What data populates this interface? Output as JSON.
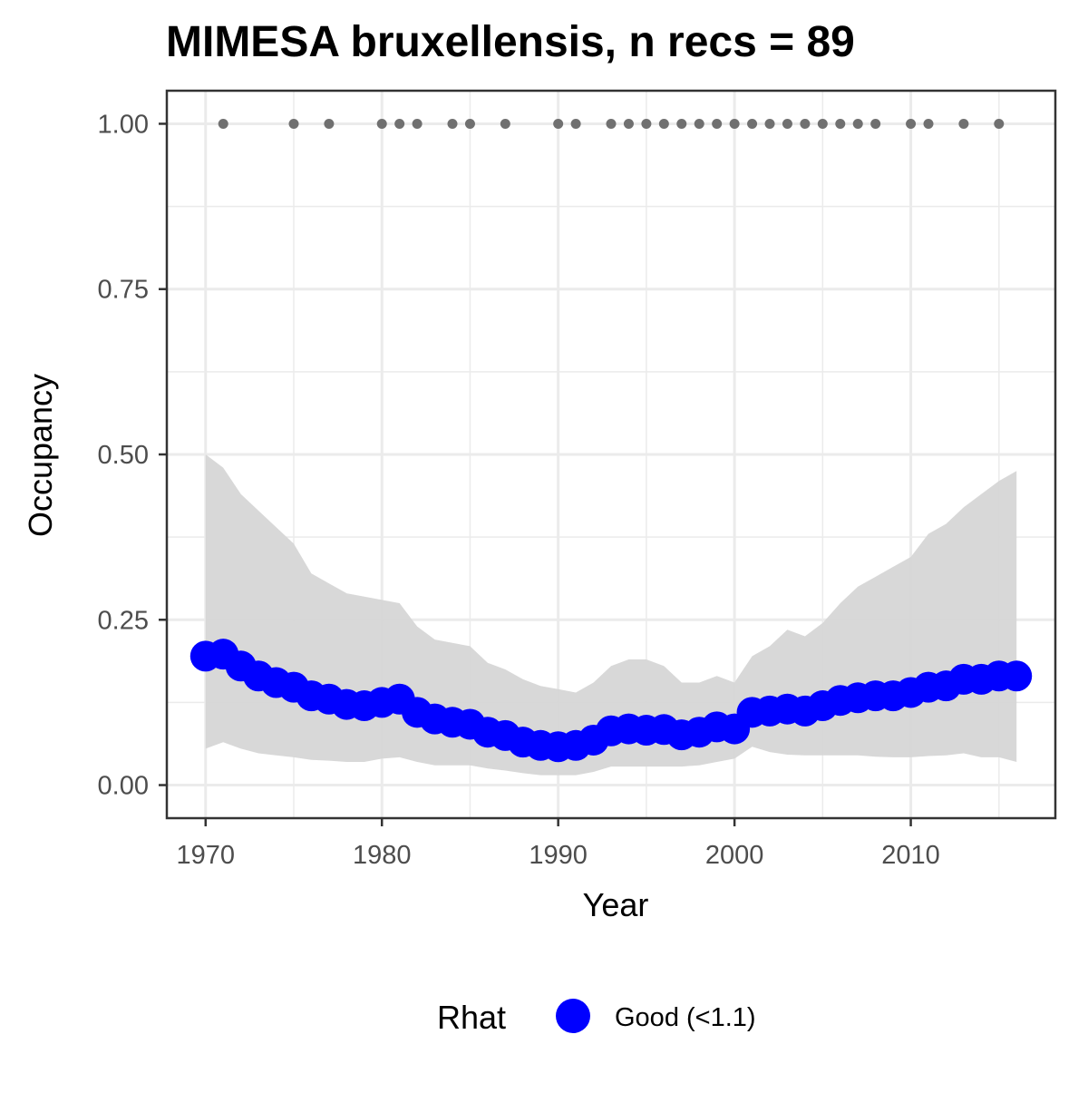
{
  "chart_data": {
    "type": "line",
    "title": "MIMESA bruxellensis, n recs = 89",
    "xlabel": "Year",
    "ylabel": "Occupancy",
    "xlim": [
      1967.8,
      2018.2
    ],
    "ylim": [
      -0.05,
      1.05
    ],
    "x_ticks": [
      1970,
      1980,
      1990,
      2000,
      2010
    ],
    "x_tick_labels": [
      "1970",
      "1980",
      "1990",
      "2000",
      "2010"
    ],
    "x_minor_ticks": [
      1975,
      1985,
      1995,
      2005,
      2015
    ],
    "y_ticks": [
      0,
      0.25,
      0.5,
      0.75,
      1
    ],
    "y_tick_labels": [
      "0.00",
      "0.25",
      "0.50",
      "0.75",
      "1.00"
    ],
    "y_minor_ticks": [
      0.125,
      0.375,
      0.625,
      0.875
    ],
    "grid": true,
    "colors": {
      "estimate": "#0000ff",
      "ribbon": "#d6d6d6",
      "records": "#707070",
      "grid": "#ebebeb",
      "panel_border": "#333333"
    },
    "series": [
      {
        "x": [
          1970,
          1971,
          1972,
          1973,
          1974,
          1975,
          1976,
          1977,
          1978,
          1979,
          1980,
          1981,
          1982,
          1983,
          1984,
          1985,
          1986,
          1987,
          1988,
          1989,
          1990,
          1991,
          1992,
          1993,
          1994,
          1995,
          1996,
          1997,
          1998,
          1999,
          2000,
          2001,
          2002,
          2003,
          2004,
          2005,
          2006,
          2007,
          2008,
          2009,
          2010,
          2011,
          2012,
          2013,
          2014,
          2015,
          2016
        ],
        "y": [
          0.195,
          0.198,
          0.18,
          0.165,
          0.155,
          0.148,
          0.135,
          0.13,
          0.122,
          0.12,
          0.125,
          0.13,
          0.11,
          0.1,
          0.095,
          0.092,
          0.08,
          0.075,
          0.065,
          0.06,
          0.058,
          0.06,
          0.068,
          0.082,
          0.085,
          0.083,
          0.084,
          0.076,
          0.08,
          0.088,
          0.085,
          0.11,
          0.112,
          0.115,
          0.112,
          0.12,
          0.128,
          0.132,
          0.135,
          0.135,
          0.14,
          0.148,
          0.15,
          0.16,
          0.16,
          0.165,
          0.165
        ],
        "lower": [
          0.055,
          0.065,
          0.055,
          0.048,
          0.045,
          0.042,
          0.038,
          0.037,
          0.035,
          0.035,
          0.04,
          0.042,
          0.035,
          0.03,
          0.03,
          0.03,
          0.025,
          0.022,
          0.018,
          0.015,
          0.015,
          0.015,
          0.02,
          0.028,
          0.028,
          0.028,
          0.028,
          0.028,
          0.03,
          0.035,
          0.04,
          0.058,
          0.05,
          0.046,
          0.045,
          0.045,
          0.045,
          0.045,
          0.043,
          0.042,
          0.042,
          0.044,
          0.045,
          0.048,
          0.042,
          0.042,
          0.035
        ],
        "upper": [
          0.5,
          0.48,
          0.44,
          0.415,
          0.39,
          0.365,
          0.32,
          0.305,
          0.29,
          0.285,
          0.28,
          0.275,
          0.24,
          0.22,
          0.215,
          0.21,
          0.185,
          0.175,
          0.16,
          0.15,
          0.145,
          0.14,
          0.155,
          0.18,
          0.19,
          0.19,
          0.18,
          0.155,
          0.155,
          0.165,
          0.155,
          0.195,
          0.21,
          0.235,
          0.225,
          0.245,
          0.275,
          0.3,
          0.315,
          0.33,
          0.345,
          0.38,
          0.395,
          0.42,
          0.44,
          0.46,
          0.475
        ]
      }
    ],
    "records": {
      "y": 1,
      "x": [
        1971,
        1975,
        1977,
        1980,
        1981,
        1982,
        1984,
        1985,
        1987,
        1990,
        1991,
        1993,
        1994,
        1995,
        1996,
        1997,
        1998,
        1999,
        2000,
        2001,
        2002,
        2003,
        2004,
        2005,
        2006,
        2007,
        2008,
        2010,
        2011,
        2013,
        2015
      ]
    },
    "legend": {
      "title": "Rhat",
      "position": "bottom",
      "items": [
        {
          "label": "Good (<1.1)",
          "color": "#0000ff"
        }
      ]
    }
  }
}
